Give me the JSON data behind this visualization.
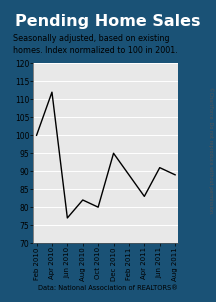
{
  "title": "Pending Home Sales",
  "subtitle": "Seasonally adjusted, based on existing\nhomes. Index normalized to 100 in 2001.",
  "source": "Data: National Association of REALTORS®",
  "watermark": "©ChartForce  Do not reproduce without permission.",
  "x_labels": [
    "Feb 2010",
    "Apr 2010",
    "Jun 2010",
    "Aug 2010",
    "Oct 2010",
    "Dec 2010",
    "Feb 2011",
    "Apr 2011",
    "Jun 2011",
    "Aug 2011"
  ],
  "y_values": [
    100,
    112,
    77,
    82,
    80,
    95,
    89,
    83,
    91,
    89
  ],
  "ylim": [
    70,
    120
  ],
  "yticks": [
    70,
    75,
    80,
    85,
    90,
    95,
    100,
    105,
    110,
    115,
    120
  ],
  "title_bg": "#1a5276",
  "title_color": "#ffffff",
  "line_color": "#000000",
  "bg_color": "#1a5276",
  "inner_bg": "#ffffff",
  "plot_bg": "#e8e8e8",
  "grid_color": "#ffffff"
}
